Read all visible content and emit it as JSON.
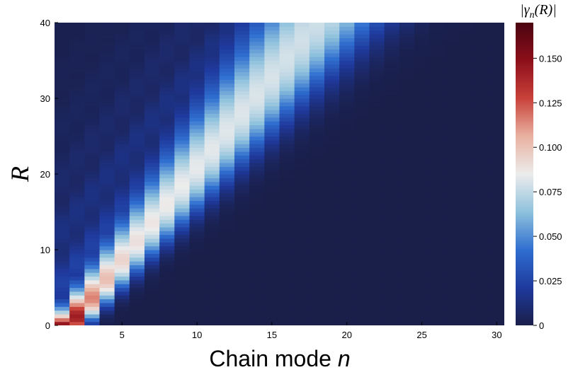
{
  "chart_data": {
    "type": "heatmap",
    "title": "",
    "xlabel": "Chain mode",
    "xlabel_var": "n",
    "ylabel": "R",
    "colorbar_title": "|γ",
    "colorbar_title_sub": "n",
    "colorbar_title_tail": "(R)|",
    "xlim": [
      0.5,
      30.5
    ],
    "ylim": [
      0,
      40
    ],
    "x_ticks": [
      5,
      10,
      15,
      20,
      25,
      30
    ],
    "x_tick_labels": [
      "5",
      "10",
      "15",
      "20",
      "25",
      "30"
    ],
    "y_ticks": [
      0,
      10,
      20,
      30,
      40
    ],
    "y_tick_labels": [
      "0",
      "10",
      "20",
      "30",
      "40"
    ],
    "colorbar_range": [
      0,
      0.17
    ],
    "colorbar_ticks": [
      0,
      0.025,
      0.05,
      0.075,
      0.1,
      0.125,
      0.15
    ],
    "colorbar_tick_labels": [
      "0",
      "0.025",
      "0.050",
      "0.075",
      "0.100",
      "0.125",
      "0.150"
    ],
    "colormap": [
      "#1a1f4a",
      "#1f3a9e",
      "#2f6fd0",
      "#8fc2dd",
      "#ececec",
      "#e9b1a0",
      "#c9423a",
      "#8c0f1a",
      "#4a0410"
    ],
    "grid": false,
    "legend": "colorbar-right",
    "n_modes": 30,
    "r_values": [
      0,
      1,
      2,
      3,
      4,
      5,
      6,
      7,
      8,
      9,
      10,
      11,
      12,
      13,
      14,
      15,
      16,
      17,
      18,
      19,
      20,
      21,
      22,
      23,
      24,
      25,
      26,
      27,
      28,
      29,
      30,
      31,
      32,
      33,
      34,
      35,
      36,
      37,
      38,
      39,
      40
    ],
    "ridge_model": {
      "description": "|gamma_n(R)| peaks along n ≈ 1.3 + 0.415 R, peak value decreasing with R",
      "center_n": [
        1.3,
        0.415
      ],
      "width_n": [
        0.8,
        0.055
      ],
      "peak": [
        0.17,
        0.09,
        0.085
      ],
      "tail_decay": 0.18
    }
  }
}
